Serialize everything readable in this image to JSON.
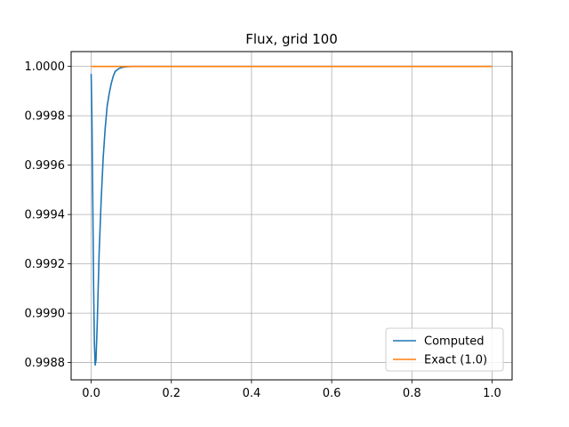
{
  "chart_data": {
    "type": "line",
    "title": "Flux, grid 100",
    "xlabel": "",
    "ylabel": "",
    "xlim": [
      -0.05,
      1.05
    ],
    "ylim": [
      0.99873,
      1.00006
    ],
    "xticks": [
      0.0,
      0.2,
      0.4,
      0.6,
      0.8,
      1.0
    ],
    "xtick_labels": [
      "0.0",
      "0.2",
      "0.4",
      "0.6",
      "0.8",
      "1.0"
    ],
    "yticks": [
      0.9988,
      0.999,
      0.9992,
      0.9994,
      0.9996,
      0.9998,
      1.0
    ],
    "ytick_labels": [
      "0.9988",
      "0.9990",
      "0.9992",
      "0.9994",
      "0.9996",
      "0.9998",
      "1.0000"
    ],
    "grid": true,
    "legend_position": "lower-right",
    "series": [
      {
        "name": "Computed",
        "color": "#1f77b4",
        "x": [
          0.0,
          0.002,
          0.004,
          0.006,
          0.008,
          0.01,
          0.012,
          0.015,
          0.02,
          0.025,
          0.03,
          0.035,
          0.04,
          0.045,
          0.05,
          0.055,
          0.06,
          0.07,
          0.08,
          0.09,
          0.1,
          0.11,
          0.12,
          0.15,
          0.2,
          0.3,
          0.4,
          0.5,
          0.6,
          0.7,
          0.8,
          0.9,
          1.0
        ],
        "y": [
          0.99997,
          0.99977,
          0.99945,
          0.99912,
          0.99888,
          0.99879,
          0.99881,
          0.99895,
          0.99925,
          0.99946,
          0.99963,
          0.99975,
          0.99984,
          0.99989,
          0.99993,
          0.99996,
          0.99998,
          0.999992,
          0.999997,
          0.999999,
          1.0,
          1.0,
          1.0,
          1.0,
          1.0,
          1.0,
          1.0,
          1.0,
          1.0,
          1.0,
          1.0,
          1.0,
          1.0
        ]
      },
      {
        "name": "Exact (1.0)",
        "color": "#ff7f0e",
        "x": [
          0.0,
          1.0
        ],
        "y": [
          1.0,
          1.0
        ]
      }
    ]
  }
}
